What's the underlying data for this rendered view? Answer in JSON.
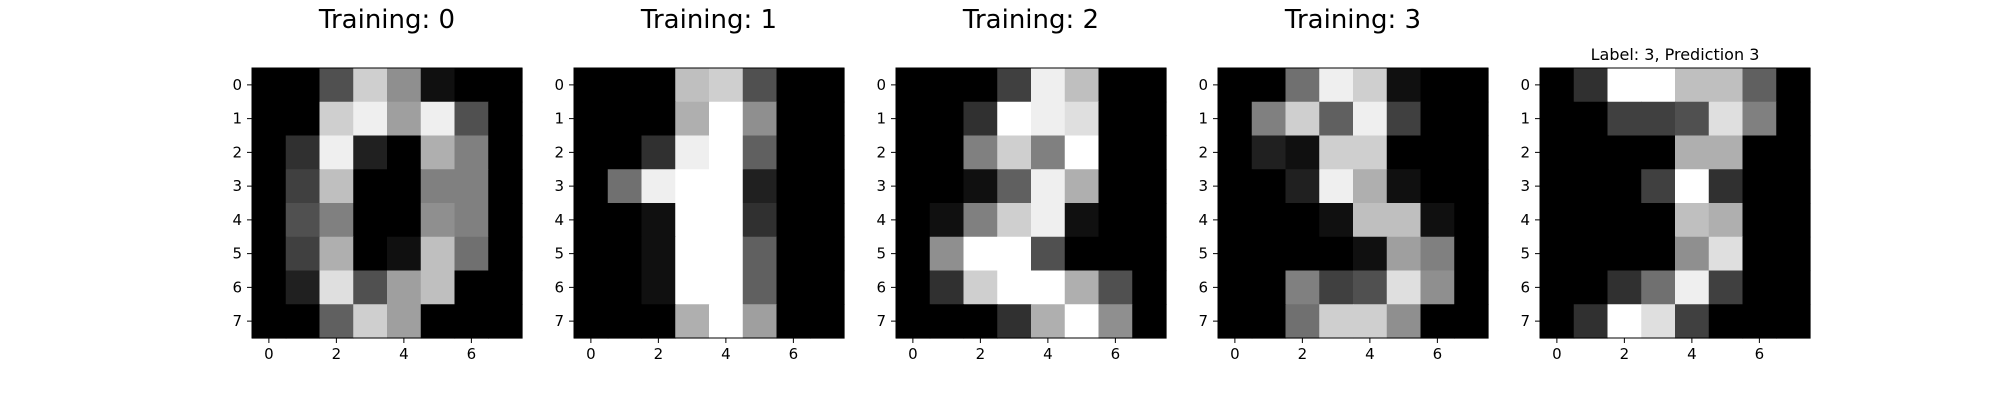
{
  "figure": {
    "background": "#ffffff"
  },
  "chart_data": [
    {
      "type": "heatmap",
      "title": "Training: 0",
      "colormap": "gray",
      "x_ticks": [
        0,
        2,
        4,
        6
      ],
      "y_ticks": [
        0,
        1,
        2,
        3,
        4,
        5,
        6,
        7
      ],
      "values": [
        [
          0,
          0,
          5,
          13,
          9,
          1,
          0,
          0
        ],
        [
          0,
          0,
          13,
          15,
          10,
          15,
          5,
          0
        ],
        [
          0,
          3,
          15,
          2,
          0,
          11,
          8,
          0
        ],
        [
          0,
          4,
          12,
          0,
          0,
          8,
          8,
          0
        ],
        [
          0,
          5,
          8,
          0,
          0,
          9,
          8,
          0
        ],
        [
          0,
          4,
          11,
          0,
          1,
          12,
          7,
          0
        ],
        [
          0,
          2,
          14,
          5,
          10,
          12,
          0,
          0
        ],
        [
          0,
          0,
          6,
          13,
          10,
          0,
          0,
          0
        ]
      ]
    },
    {
      "type": "heatmap",
      "title": "Training: 1",
      "colormap": "gray",
      "x_ticks": [
        0,
        2,
        4,
        6
      ],
      "y_ticks": [
        0,
        1,
        2,
        3,
        4,
        5,
        6,
        7
      ],
      "values": [
        [
          0,
          0,
          0,
          12,
          13,
          5,
          0,
          0
        ],
        [
          0,
          0,
          0,
          11,
          16,
          9,
          0,
          0
        ],
        [
          0,
          0,
          3,
          15,
          16,
          6,
          0,
          0
        ],
        [
          0,
          7,
          15,
          16,
          16,
          2,
          0,
          0
        ],
        [
          0,
          0,
          1,
          16,
          16,
          3,
          0,
          0
        ],
        [
          0,
          0,
          1,
          16,
          16,
          6,
          0,
          0
        ],
        [
          0,
          0,
          1,
          16,
          16,
          6,
          0,
          0
        ],
        [
          0,
          0,
          0,
          11,
          16,
          10,
          0,
          0
        ]
      ]
    },
    {
      "type": "heatmap",
      "title": "Training: 2",
      "colormap": "gray",
      "x_ticks": [
        0,
        2,
        4,
        6
      ],
      "y_ticks": [
        0,
        1,
        2,
        3,
        4,
        5,
        6,
        7
      ],
      "values": [
        [
          0,
          0,
          0,
          4,
          15,
          12,
          0,
          0
        ],
        [
          0,
          0,
          3,
          16,
          15,
          14,
          0,
          0
        ],
        [
          0,
          0,
          8,
          13,
          8,
          16,
          0,
          0
        ],
        [
          0,
          0,
          1,
          6,
          15,
          11,
          0,
          0
        ],
        [
          0,
          1,
          8,
          13,
          15,
          1,
          0,
          0
        ],
        [
          0,
          9,
          16,
          16,
          5,
          0,
          0,
          0
        ],
        [
          0,
          3,
          13,
          16,
          16,
          11,
          5,
          0
        ],
        [
          0,
          0,
          0,
          3,
          11,
          16,
          9,
          0
        ]
      ]
    },
    {
      "type": "heatmap",
      "title": "Training: 3",
      "colormap": "gray",
      "x_ticks": [
        0,
        2,
        4,
        6
      ],
      "y_ticks": [
        0,
        1,
        2,
        3,
        4,
        5,
        6,
        7
      ],
      "values": [
        [
          0,
          0,
          7,
          15,
          13,
          1,
          0,
          0
        ],
        [
          0,
          8,
          13,
          6,
          15,
          4,
          0,
          0
        ],
        [
          0,
          2,
          1,
          13,
          13,
          0,
          0,
          0
        ],
        [
          0,
          0,
          2,
          15,
          11,
          1,
          0,
          0
        ],
        [
          0,
          0,
          0,
          1,
          12,
          12,
          1,
          0
        ],
        [
          0,
          0,
          0,
          0,
          1,
          10,
          8,
          0
        ],
        [
          0,
          0,
          8,
          4,
          5,
          14,
          9,
          0
        ],
        [
          0,
          0,
          7,
          13,
          13,
          9,
          0,
          0
        ]
      ]
    },
    {
      "type": "heatmap",
      "title": "Label: 3, Prediction 3",
      "colormap": "gray",
      "x_ticks": [
        0,
        2,
        4,
        6
      ],
      "y_ticks": [
        0,
        1,
        2,
        3,
        4,
        5,
        6,
        7
      ],
      "values": [
        [
          0,
          3,
          16,
          16,
          12,
          12,
          6,
          0
        ],
        [
          0,
          0,
          4,
          4,
          5,
          14,
          8,
          0
        ],
        [
          0,
          0,
          0,
          0,
          11,
          11,
          0,
          0
        ],
        [
          0,
          0,
          0,
          4,
          16,
          3,
          0,
          0
        ],
        [
          0,
          0,
          0,
          0,
          12,
          11,
          0,
          0
        ],
        [
          0,
          0,
          0,
          0,
          9,
          14,
          0,
          0
        ],
        [
          0,
          0,
          3,
          7,
          15,
          4,
          0,
          0
        ],
        [
          0,
          3,
          16,
          14,
          4,
          0,
          0,
          0
        ]
      ]
    }
  ]
}
